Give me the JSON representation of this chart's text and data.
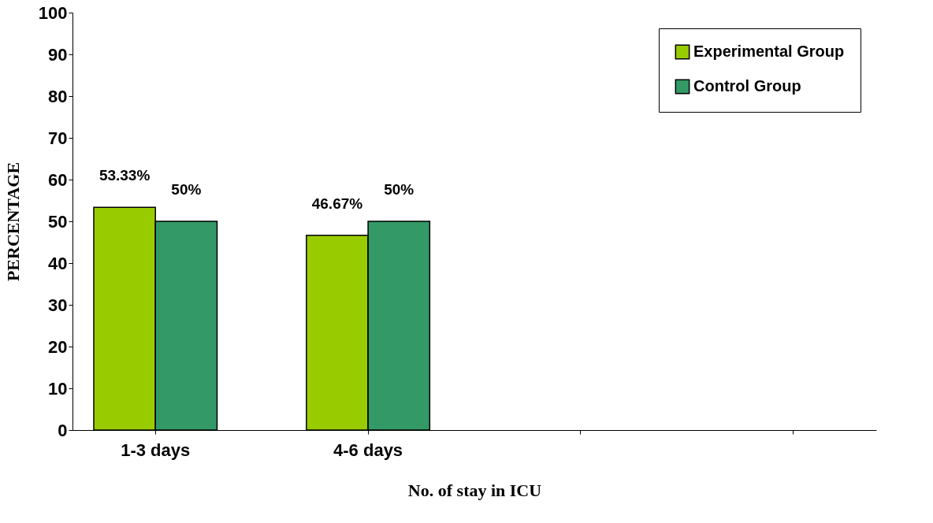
{
  "chart_data": {
    "type": "bar",
    "xlabel": "No. of stay in ICU",
    "ylabel": "PERCENTAGE",
    "categories": [
      "1-3 days",
      "4-6 days",
      null,
      null
    ],
    "series": [
      {
        "name": "Experimental Group",
        "color": "#99cc00",
        "values": [
          53.33,
          46.67,
          null,
          null
        ],
        "value_labels": [
          "53.33%",
          "46.67%",
          null,
          null
        ]
      },
      {
        "name": "Control Group",
        "color": "#339966",
        "values": [
          50,
          50,
          null,
          null
        ],
        "value_labels": [
          "50%",
          "50%",
          null,
          null
        ]
      }
    ],
    "ylim": [
      0,
      100
    ],
    "yticks": [
      0,
      10,
      20,
      30,
      40,
      50,
      60,
      70,
      80,
      90,
      100
    ],
    "grid": false,
    "legend": "top right"
  }
}
